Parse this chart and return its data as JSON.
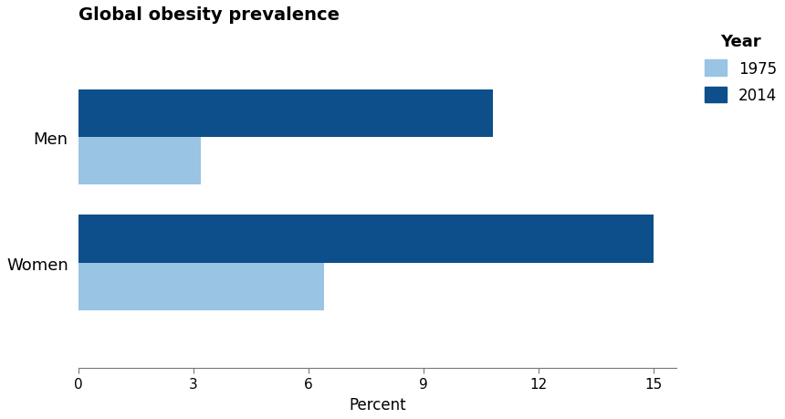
{
  "title": "Global obesity prevalence",
  "categories": [
    "Men",
    "Women"
  ],
  "values_1975": [
    3.2,
    6.4
  ],
  "values_2014": [
    10.8,
    15.0
  ],
  "color_1975": "#99c4e4",
  "color_2014": "#0d4f8b",
  "xlabel": "Percent",
  "xticks": [
    0,
    3,
    6,
    9,
    12,
    15
  ],
  "xlim": [
    0,
    15.6
  ],
  "legend_title": "Year",
  "legend_labels": [
    "1975",
    "2014"
  ],
  "title_fontsize": 14,
  "axis_fontsize": 12,
  "tick_fontsize": 11,
  "bar_height": 0.38
}
